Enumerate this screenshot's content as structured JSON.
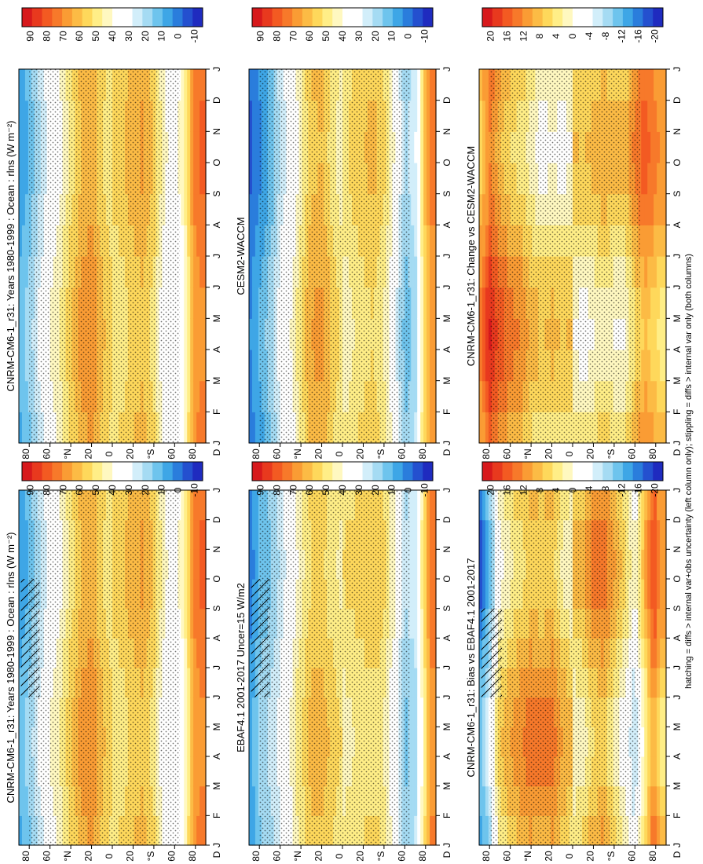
{
  "figure": {
    "footer": "hatching = diffs > internal var+obs uncertainty (left column only); stippling = diffs > internal var only (both columns)",
    "months": [
      "J",
      "F",
      "M",
      "A",
      "M",
      "J",
      "J",
      "A",
      "S",
      "O",
      "N",
      "D",
      "J"
    ],
    "edge_month": "D",
    "lat_labels": [
      "80",
      "60",
      "°N",
      "20",
      "0",
      "20",
      "°S",
      "60",
      "80"
    ],
    "abs_colorbar": {
      "labels": [
        "90",
        "80",
        "70",
        "60",
        "50",
        "40",
        "30",
        "20",
        "10",
        "0",
        "-10"
      ],
      "colors": [
        "#d7191c",
        "#e8391e",
        "#f35a22",
        "#f7792a",
        "#fa9c34",
        "#fcbb45",
        "#fed85b",
        "#ffee87",
        "#fff8c0",
        "#ffffff",
        "#ffffff",
        "#d2eefa",
        "#a5dbf3",
        "#6ec4ed",
        "#3ea6e6",
        "#2a7ddc",
        "#2450cf",
        "#1f2bbf"
      ]
    },
    "diff_colorbar": {
      "labels": [
        "20",
        "16",
        "12",
        "8",
        "4",
        "0",
        "-4",
        "-8",
        "-12",
        "-16",
        "-20"
      ],
      "colors": [
        "#d7191c",
        "#e8391e",
        "#f35a22",
        "#f7792a",
        "#fa9c34",
        "#fcbb45",
        "#fed85b",
        "#ffee87",
        "#fff8c0",
        "#ffffff",
        "#ffffff",
        "#d2eefa",
        "#a5dbf3",
        "#6ec4ed",
        "#3ea6e6",
        "#2a7ddc",
        "#2450cf",
        "#1f2bbf"
      ]
    }
  },
  "chart_data": [
    {
      "type": "heatmap",
      "title": "CNRM-CM6-1_r31: Years 1980-1999 : Ocean : rlns (W m⁻²)",
      "xlabel": "Latitude",
      "ylabel": "Month",
      "x": [
        80,
        60,
        40,
        20,
        0,
        -20,
        -40,
        -60,
        -80
      ],
      "y": [
        "J",
        "F",
        "M",
        "A",
        "M",
        "J",
        "J",
        "A",
        "S",
        "O",
        "N",
        "D"
      ],
      "z_range": [
        -10,
        95
      ],
      "profile_lat": [
        -85,
        -78,
        -70,
        -60,
        -50,
        -40,
        -30,
        -20,
        -10,
        0,
        10,
        20,
        30,
        40,
        50,
        60,
        70,
        80,
        88
      ],
      "profile_val": [
        75,
        70,
        45,
        35,
        40,
        55,
        63,
        60,
        55,
        52,
        58,
        68,
        64,
        55,
        45,
        38,
        28,
        18,
        12
      ],
      "hatch_lat": [
        70,
        88
      ],
      "hatch_month": [
        5,
        9
      ]
    },
    {
      "type": "heatmap",
      "title": "CNRM-CM6-1_r31: Years 1980-1999 : Ocean : rlns (W m⁻²)",
      "xlabel": "Latitude",
      "ylabel": "Month",
      "x": [
        80,
        60,
        40,
        20,
        0,
        -20,
        -40,
        -60,
        -80
      ],
      "y": [
        "J",
        "F",
        "M",
        "A",
        "M",
        "J",
        "J",
        "A",
        "S",
        "O",
        "N",
        "D"
      ],
      "z_range": [
        -10,
        95
      ],
      "profile_lat": [
        -85,
        -78,
        -70,
        -60,
        -50,
        -40,
        -30,
        -20,
        -10,
        0,
        10,
        20,
        30,
        40,
        50,
        60,
        70,
        80,
        88
      ],
      "profile_val": [
        75,
        70,
        45,
        35,
        40,
        55,
        63,
        60,
        55,
        52,
        58,
        68,
        64,
        55,
        45,
        38,
        28,
        18,
        12
      ],
      "hatch_lat": null,
      "hatch_month": null
    },
    {
      "type": "heatmap",
      "title": "EBAF4.1 2001-2017 Uncer=15 W/m2",
      "xlabel": "Latitude",
      "ylabel": "Month",
      "x": [
        80,
        60,
        40,
        20,
        0,
        -20,
        -40,
        -60,
        -80
      ],
      "y": [
        "J",
        "F",
        "M",
        "A",
        "M",
        "J",
        "J",
        "A",
        "S",
        "O",
        "N",
        "D"
      ],
      "z_range": [
        -10,
        95
      ],
      "profile_lat": [
        -85,
        -78,
        -70,
        -60,
        -50,
        -40,
        -30,
        -20,
        -10,
        0,
        10,
        20,
        30,
        40,
        50,
        60,
        70,
        80,
        88
      ],
      "profile_val": [
        72,
        50,
        25,
        22,
        40,
        52,
        56,
        54,
        52,
        50,
        54,
        60,
        58,
        50,
        40,
        30,
        22,
        18,
        8
      ],
      "hatch_lat": [
        70,
        88
      ],
      "hatch_month": [
        5,
        9
      ]
    },
    {
      "type": "heatmap",
      "title": "CESM2-WACCM",
      "xlabel": "Latitude",
      "ylabel": "Month",
      "x": [
        80,
        60,
        40,
        20,
        0,
        -20,
        -40,
        -60,
        -80
      ],
      "y": [
        "J",
        "F",
        "M",
        "A",
        "M",
        "J",
        "J",
        "A",
        "S",
        "O",
        "N",
        "D"
      ],
      "z_range": [
        -10,
        95
      ],
      "profile_lat": [
        -85,
        -78,
        -70,
        -60,
        -50,
        -40,
        -30,
        -20,
        -10,
        0,
        10,
        20,
        30,
        40,
        50,
        60,
        70,
        80,
        88
      ],
      "profile_val": [
        70,
        55,
        25,
        20,
        38,
        52,
        58,
        56,
        52,
        48,
        55,
        64,
        62,
        50,
        38,
        30,
        18,
        10,
        4
      ],
      "hatch_lat": null,
      "hatch_month": null
    },
    {
      "type": "heatmap",
      "title": "CNRM-CM6-1_r31: Bias vs EBAF4.1 2001-2017",
      "xlabel": "Latitude",
      "ylabel": "Month",
      "x": [
        80,
        60,
        40,
        20,
        0,
        -20,
        -40,
        -60,
        -80
      ],
      "y": [
        "J",
        "F",
        "M",
        "A",
        "M",
        "J",
        "J",
        "A",
        "S",
        "O",
        "N",
        "D"
      ],
      "z_range": [
        -22,
        22
      ],
      "profile_lat": [
        -85,
        -78,
        -70,
        -60,
        -50,
        -40,
        -30,
        -20,
        -10,
        0,
        10,
        20,
        30,
        40,
        50,
        60,
        70,
        80,
        88
      ],
      "profile_val": [
        8,
        14,
        6,
        -4,
        2,
        6,
        10,
        9,
        5,
        4,
        6,
        10,
        9,
        10,
        8,
        6,
        3,
        -8,
        -14
      ],
      "hatch_lat": [
        68,
        88
      ],
      "hatch_month": [
        5,
        8
      ]
    },
    {
      "type": "heatmap",
      "title": "CNRM-CM6-1_r31: Change vs CESM2-WACCM",
      "xlabel": "Latitude",
      "ylabel": "Month",
      "x": [
        80,
        60,
        40,
        20,
        0,
        -20,
        -40,
        -60,
        -80
      ],
      "y": [
        "J",
        "F",
        "M",
        "A",
        "M",
        "J",
        "J",
        "A",
        "S",
        "O",
        "N",
        "D"
      ],
      "z_range": [
        -22,
        22
      ],
      "profile_lat": [
        -85,
        -78,
        -70,
        -60,
        -50,
        -40,
        -30,
        -20,
        -10,
        0,
        10,
        20,
        30,
        40,
        50,
        60,
        70,
        80,
        88
      ],
      "profile_val": [
        8,
        10,
        12,
        9,
        4,
        4,
        6,
        4,
        3,
        4,
        3,
        4,
        3,
        5,
        8,
        9,
        12,
        16,
        10
      ],
      "hatch_lat": null,
      "hatch_month": null
    }
  ]
}
